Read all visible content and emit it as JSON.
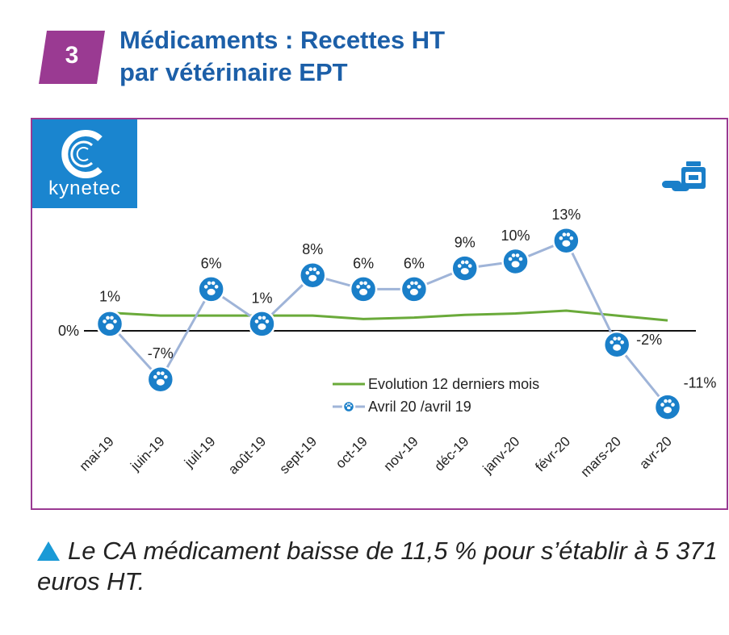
{
  "header": {
    "section_number": "3",
    "title_line1": "Médicaments : Recettes HT",
    "title_line2": "par vétérinaire EPT"
  },
  "logo": {
    "text": "kynetec",
    "icon": "kynetec-c-logo-icon"
  },
  "chart_icon": "medicine-pills-icon",
  "colors": {
    "badge": "#9a3a92",
    "title": "#1c5fa8",
    "frame": "#9a3a92",
    "logo_bg": "#1a85cf",
    "line_12m": "#6aaa3a",
    "line_monthly": "#9fb4d8",
    "marker": "#1a7fc9",
    "caption_triangle": "#1a9ad6"
  },
  "chart_data": {
    "type": "line",
    "title": "",
    "xlabel": "",
    "ylabel": "",
    "categories": [
      "mai-19",
      "juin-19",
      "juil-19",
      "août-19",
      "sept-19",
      "oct-19",
      "nov-19",
      "déc-19",
      "janv-20",
      "févr-20",
      "mars-20",
      "avr-20"
    ],
    "zero_label": "0%",
    "ylim": [
      -14,
      16
    ],
    "series": [
      {
        "name": "Evolution 12 derniers mois",
        "style": "line",
        "values": [
          2.6,
          2.2,
          2.2,
          2.2,
          2.2,
          1.7,
          1.9,
          2.3,
          2.5,
          2.9,
          2.2,
          1.5
        ]
      },
      {
        "name": "Avril 20 /avril 19",
        "style": "line-with-paw-markers",
        "values": [
          1,
          -7,
          6,
          1,
          8,
          6,
          6,
          9,
          10,
          13,
          -2,
          -11
        ],
        "labels": [
          "1%",
          "-7%",
          "6%",
          "1%",
          "8%",
          "6%",
          "6%",
          "9%",
          "10%",
          "13%",
          "-2%",
          "-11%"
        ]
      }
    ],
    "legend_position": "bottom-right"
  },
  "caption": {
    "text": "Le CA médicament baisse de 11,5 % pour s’établir à 5 371 euros HT."
  }
}
